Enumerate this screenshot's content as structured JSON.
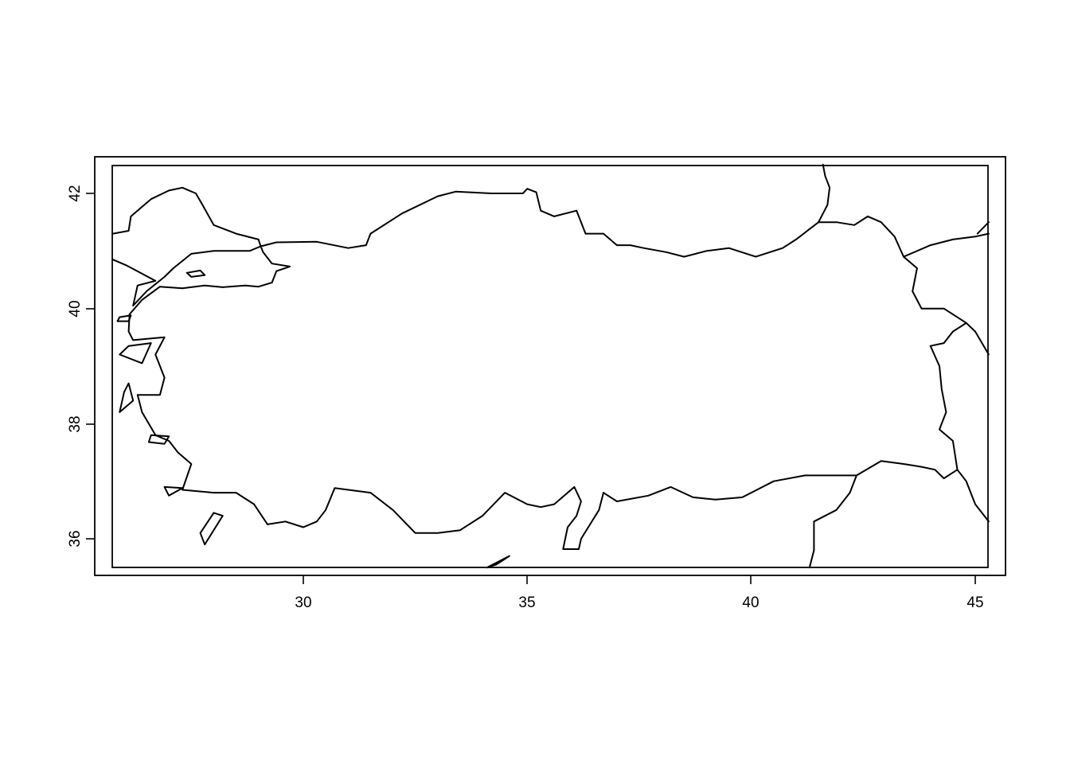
{
  "chart_data": {
    "type": "map",
    "title": "",
    "xlabel": "",
    "ylabel": "",
    "xlim": [
      25.35,
      45.65
    ],
    "ylim": [
      35.35,
      42.6
    ],
    "x_ticks": [
      30,
      35,
      40,
      45
    ],
    "y_ticks": [
      36,
      38,
      40,
      42
    ],
    "x_tick_labels": [
      "30",
      "35",
      "40",
      "45"
    ],
    "y_tick_labels": [
      "36",
      "38",
      "40",
      "42"
    ],
    "grid": false,
    "legend": "none",
    "colors": {
      "stroke": "#000000",
      "background": "#ffffff"
    },
    "map_extent": {
      "lon": [
        25.75,
        45.3
      ],
      "lat": [
        35.5,
        42.5
      ]
    },
    "features": [
      {
        "name": "turkey-anatolia-outline",
        "lonlat": [
          [
            26.12,
            39.9
          ],
          [
            26.4,
            40.15
          ],
          [
            26.8,
            40.38
          ],
          [
            27.3,
            40.35
          ],
          [
            27.8,
            40.4
          ],
          [
            28.2,
            40.37
          ],
          [
            28.7,
            40.4
          ],
          [
            29.0,
            40.38
          ],
          [
            29.3,
            40.45
          ],
          [
            29.4,
            40.65
          ],
          [
            29.7,
            40.73
          ],
          [
            29.3,
            40.78
          ],
          [
            29.1,
            40.98
          ],
          [
            29.05,
            41.08
          ],
          [
            29.4,
            41.15
          ],
          [
            30.3,
            41.16
          ],
          [
            31.0,
            41.05
          ],
          [
            31.4,
            41.1
          ],
          [
            31.5,
            41.3
          ],
          [
            32.2,
            41.65
          ],
          [
            33.0,
            41.95
          ],
          [
            33.4,
            42.03
          ],
          [
            34.2,
            42.0
          ],
          [
            34.9,
            42.0
          ],
          [
            35.0,
            42.08
          ],
          [
            35.2,
            42.02
          ],
          [
            35.3,
            41.7
          ],
          [
            35.6,
            41.6
          ],
          [
            36.1,
            41.7
          ],
          [
            36.3,
            41.3
          ],
          [
            36.7,
            41.3
          ],
          [
            37.0,
            41.1
          ],
          [
            37.3,
            41.1
          ],
          [
            37.6,
            41.05
          ],
          [
            38.1,
            40.98
          ],
          [
            38.5,
            40.9
          ],
          [
            39.0,
            41.0
          ],
          [
            39.5,
            41.05
          ],
          [
            40.1,
            40.9
          ],
          [
            40.7,
            41.05
          ],
          [
            41.0,
            41.2
          ],
          [
            41.5,
            41.5
          ],
          [
            41.9,
            41.5
          ],
          [
            42.3,
            41.45
          ],
          [
            42.6,
            41.6
          ],
          [
            42.9,
            41.5
          ],
          [
            43.2,
            41.25
          ],
          [
            43.4,
            40.9
          ],
          [
            43.7,
            40.7
          ],
          [
            43.6,
            40.3
          ],
          [
            43.8,
            40.0
          ],
          [
            44.3,
            40.0
          ],
          [
            44.8,
            39.75
          ],
          [
            44.5,
            39.6
          ],
          [
            44.3,
            39.4
          ],
          [
            44.0,
            39.35
          ],
          [
            44.2,
            39.0
          ],
          [
            44.25,
            38.6
          ],
          [
            44.35,
            38.2
          ],
          [
            44.2,
            37.9
          ],
          [
            44.5,
            37.7
          ],
          [
            44.6,
            37.2
          ],
          [
            44.3,
            37.05
          ],
          [
            44.1,
            37.2
          ],
          [
            43.8,
            37.25
          ],
          [
            43.4,
            37.3
          ],
          [
            42.9,
            37.35
          ],
          [
            42.35,
            37.1
          ],
          [
            41.8,
            37.1
          ],
          [
            41.2,
            37.1
          ],
          [
            40.5,
            37.0
          ],
          [
            39.8,
            36.72
          ],
          [
            39.2,
            36.68
          ],
          [
            38.7,
            36.72
          ],
          [
            38.2,
            36.9
          ],
          [
            37.7,
            36.75
          ],
          [
            37.0,
            36.65
          ],
          [
            36.7,
            36.8
          ],
          [
            36.6,
            36.5
          ],
          [
            36.2,
            36.0
          ],
          [
            36.15,
            35.82
          ],
          [
            35.8,
            35.82
          ],
          [
            35.9,
            36.2
          ],
          [
            36.1,
            36.4
          ],
          [
            36.2,
            36.65
          ],
          [
            36.05,
            36.9
          ],
          [
            35.6,
            36.6
          ],
          [
            35.3,
            36.55
          ],
          [
            35.0,
            36.6
          ],
          [
            34.5,
            36.8
          ],
          [
            34.0,
            36.4
          ],
          [
            33.5,
            36.15
          ],
          [
            33.0,
            36.1
          ],
          [
            32.5,
            36.1
          ],
          [
            32.0,
            36.5
          ],
          [
            31.5,
            36.8
          ],
          [
            30.7,
            36.88
          ],
          [
            30.5,
            36.5
          ],
          [
            30.3,
            36.3
          ],
          [
            30.0,
            36.2
          ],
          [
            29.6,
            36.3
          ],
          [
            29.2,
            36.25
          ],
          [
            28.9,
            36.6
          ],
          [
            28.5,
            36.8
          ],
          [
            28.0,
            36.8
          ],
          [
            27.3,
            36.85
          ],
          [
            27.5,
            37.3
          ],
          [
            27.2,
            37.5
          ],
          [
            27.0,
            37.7
          ],
          [
            26.7,
            37.8
          ],
          [
            26.4,
            38.2
          ],
          [
            26.3,
            38.5
          ],
          [
            26.8,
            38.5
          ],
          [
            26.9,
            38.8
          ],
          [
            26.7,
            39.2
          ],
          [
            26.9,
            39.5
          ],
          [
            26.2,
            39.45
          ],
          [
            26.1,
            39.6
          ],
          [
            26.12,
            39.9
          ]
        ]
      },
      {
        "name": "thrace-coastline",
        "lonlat": [
          [
            25.75,
            41.3
          ],
          [
            26.1,
            41.35
          ],
          [
            26.15,
            41.6
          ],
          [
            26.6,
            41.9
          ],
          [
            27.0,
            42.05
          ],
          [
            27.3,
            42.1
          ],
          [
            27.6,
            42.0
          ],
          [
            27.75,
            41.8
          ],
          [
            28.0,
            41.45
          ],
          [
            28.5,
            41.3
          ],
          [
            29.0,
            41.2
          ],
          [
            29.05,
            41.08
          ],
          [
            28.8,
            41.0
          ],
          [
            28.5,
            41.0
          ],
          [
            28.0,
            41.0
          ],
          [
            27.5,
            40.95
          ],
          [
            27.1,
            40.7
          ],
          [
            26.9,
            40.55
          ],
          [
            26.5,
            40.3
          ],
          [
            26.2,
            40.05
          ],
          [
            26.3,
            40.4
          ],
          [
            26.7,
            40.48
          ],
          [
            26.05,
            40.75
          ],
          [
            25.75,
            40.85
          ]
        ]
      },
      {
        "name": "marmara-island",
        "lonlat": [
          [
            27.4,
            40.62
          ],
          [
            27.7,
            40.66
          ],
          [
            27.8,
            40.58
          ],
          [
            27.5,
            40.55
          ],
          [
            27.4,
            40.62
          ]
        ]
      },
      {
        "name": "bozcaada-island",
        "lonlat": [
          [
            25.9,
            39.85
          ],
          [
            26.15,
            39.88
          ],
          [
            26.1,
            39.78
          ],
          [
            25.85,
            39.78
          ],
          [
            25.9,
            39.85
          ]
        ]
      },
      {
        "name": "lesbos-island",
        "lonlat": [
          [
            26.1,
            39.35
          ],
          [
            26.6,
            39.4
          ],
          [
            26.4,
            39.05
          ],
          [
            25.9,
            39.2
          ],
          [
            26.1,
            39.35
          ]
        ]
      },
      {
        "name": "chios-island",
        "lonlat": [
          [
            26.0,
            38.55
          ],
          [
            26.1,
            38.7
          ],
          [
            26.2,
            38.4
          ],
          [
            25.9,
            38.2
          ],
          [
            26.0,
            38.55
          ]
        ]
      },
      {
        "name": "samos-island",
        "lonlat": [
          [
            26.6,
            37.8
          ],
          [
            27.0,
            37.78
          ],
          [
            26.9,
            37.65
          ],
          [
            26.55,
            37.68
          ],
          [
            26.6,
            37.8
          ]
        ]
      },
      {
        "name": "kos-island",
        "lonlat": [
          [
            26.9,
            36.9
          ],
          [
            27.3,
            36.88
          ],
          [
            27.0,
            36.75
          ],
          [
            26.9,
            36.9
          ]
        ]
      },
      {
        "name": "rhodes-island",
        "lonlat": [
          [
            28.0,
            36.45
          ],
          [
            28.2,
            36.4
          ],
          [
            27.8,
            35.9
          ],
          [
            27.7,
            36.1
          ],
          [
            28.0,
            36.45
          ]
        ]
      },
      {
        "name": "cyprus-tip",
        "lonlat": [
          [
            34.1,
            35.5
          ],
          [
            34.6,
            35.7
          ],
          [
            34.3,
            35.55
          ],
          [
            34.1,
            35.5
          ]
        ]
      },
      {
        "name": "syria-turkey-border",
        "lonlat": [
          [
            42.35,
            37.1
          ],
          [
            42.2,
            36.8
          ],
          [
            41.9,
            36.5
          ],
          [
            41.4,
            36.3
          ],
          [
            41.4,
            35.8
          ],
          [
            41.3,
            35.5
          ]
        ]
      },
      {
        "name": "georgia-armenia-border",
        "lonlat": [
          [
            43.4,
            40.9
          ],
          [
            44.0,
            41.1
          ],
          [
            44.5,
            41.2
          ],
          [
            45.0,
            41.25
          ],
          [
            45.3,
            41.3
          ]
        ]
      },
      {
        "name": "georgia-russia-coast",
        "lonlat": [
          [
            41.5,
            41.5
          ],
          [
            41.7,
            41.8
          ],
          [
            41.75,
            42.1
          ],
          [
            41.65,
            42.3
          ],
          [
            41.6,
            42.5
          ]
        ]
      },
      {
        "name": "caucasus-border",
        "lonlat": [
          [
            45.3,
            41.5
          ],
          [
            45.05,
            41.3
          ]
        ]
      },
      {
        "name": "iran-armenia-border",
        "lonlat": [
          [
            44.8,
            39.75
          ],
          [
            45.0,
            39.6
          ],
          [
            45.3,
            39.2
          ]
        ]
      },
      {
        "name": "iraq-iran-border",
        "lonlat": [
          [
            44.6,
            37.2
          ],
          [
            44.8,
            37.0
          ],
          [
            45.0,
            36.6
          ],
          [
            45.3,
            36.3
          ]
        ]
      }
    ]
  }
}
